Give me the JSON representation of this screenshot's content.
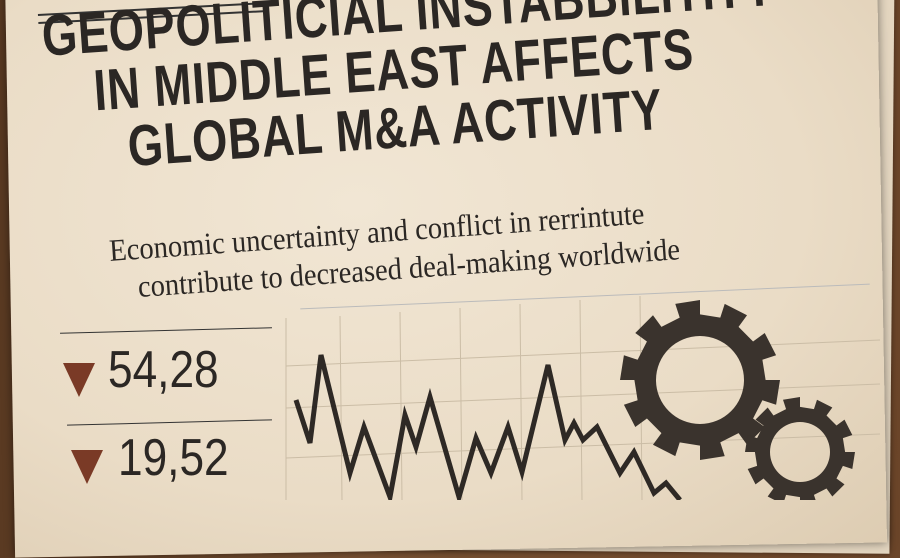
{
  "headline": {
    "lines": [
      "GEOPOLITICIAL INSTABBILITITY",
      "IN MIDDLE EAST AFFECTS",
      "GLOBAL M&A ACTIVITY"
    ]
  },
  "subheadline": {
    "lines": [
      "Economic uncertainty and conflict in rerrintute",
      "contribute to decreased deal-making worldwide"
    ]
  },
  "stats": [
    {
      "value": "54,28",
      "direction": "down",
      "icon": "down-triangle-icon",
      "color": "#7a3a26"
    },
    {
      "value": "19,52",
      "direction": "down",
      "icon": "down-triangle-icon",
      "color": "#7a3a26"
    }
  ],
  "decorations": {
    "chart": "line-chart-declining",
    "icons": [
      "gear-icon",
      "gear-icon"
    ]
  },
  "colors": {
    "ink": "#2b2724",
    "paper": "#eadcc6",
    "wood": "#6b4529",
    "accent": "#7a3a26"
  }
}
